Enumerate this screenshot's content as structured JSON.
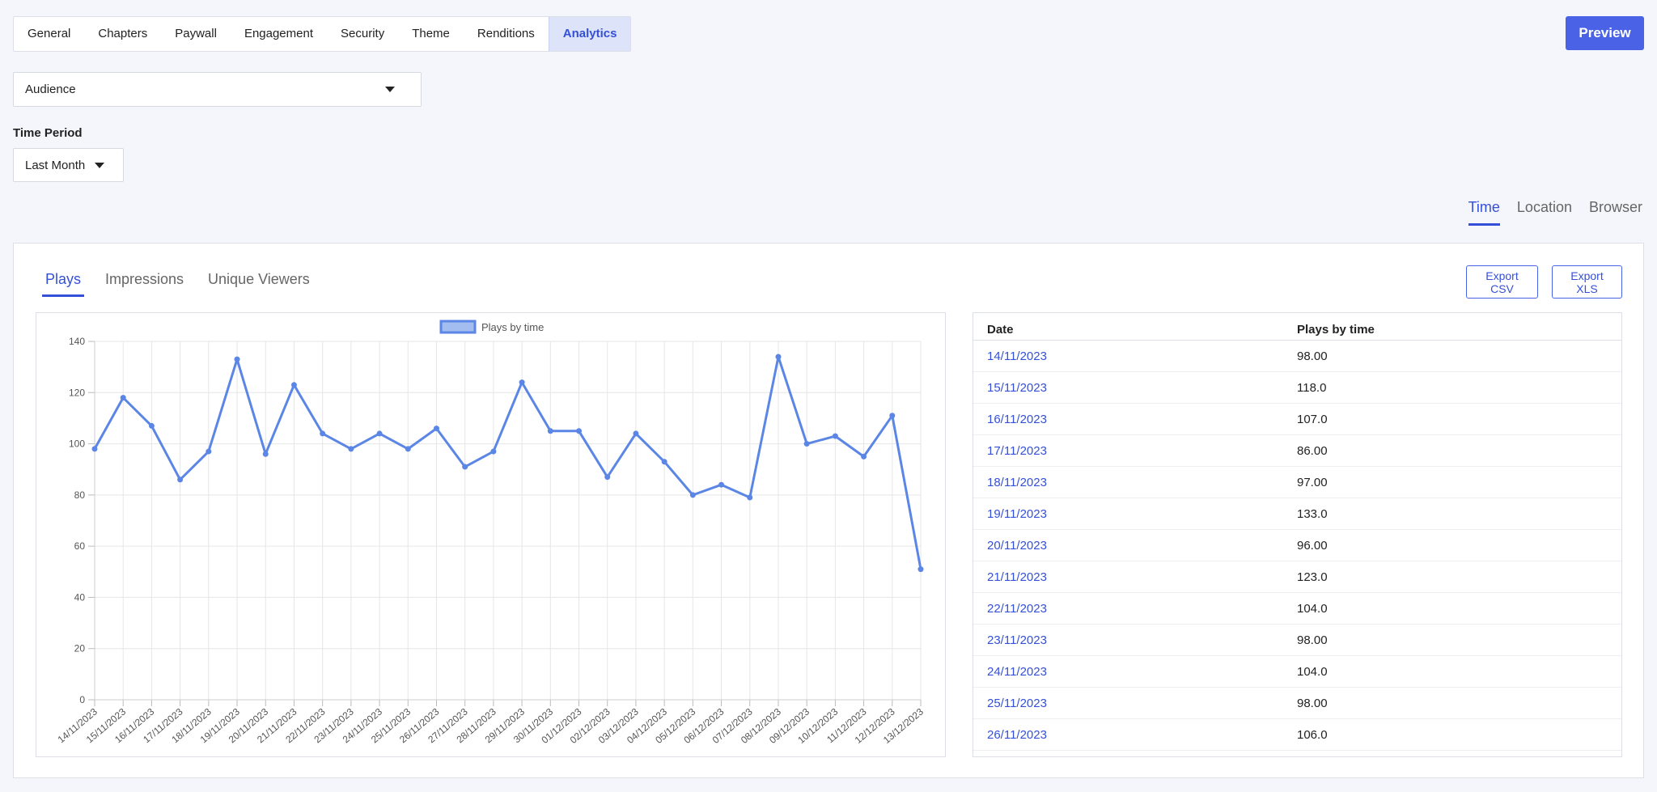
{
  "nav": {
    "tabs": [
      {
        "label": "General"
      },
      {
        "label": "Chapters"
      },
      {
        "label": "Paywall"
      },
      {
        "label": "Engagement"
      },
      {
        "label": "Security"
      },
      {
        "label": "Theme"
      },
      {
        "label": "Renditions"
      },
      {
        "label": "Analytics",
        "active": true
      }
    ],
    "preview_label": "Preview"
  },
  "filters": {
    "audience_value": "Audience",
    "time_period_label": "Time Period",
    "time_period_value": "Last Month"
  },
  "view_tabs": [
    {
      "label": "Time",
      "active": true
    },
    {
      "label": "Location"
    },
    {
      "label": "Browser"
    }
  ],
  "metric_tabs": [
    {
      "label": "Plays",
      "active": true
    },
    {
      "label": "Impressions"
    },
    {
      "label": "Unique Viewers"
    }
  ],
  "export": {
    "csv_label": "Export CSV",
    "xls_label": "Export XLS"
  },
  "colors": {
    "accent": "#3550d8",
    "line": "#5b86e5",
    "legend_fill": "#a4bdf1"
  },
  "chart_data": {
    "type": "line",
    "legend": "Plays by time",
    "legend_position": "top-center",
    "grid": true,
    "ylim": [
      0,
      140
    ],
    "yticks": [
      0,
      20,
      40,
      60,
      80,
      100,
      120,
      140
    ],
    "x": [
      "14/11/2023",
      "15/11/2023",
      "16/11/2023",
      "17/11/2023",
      "18/11/2023",
      "19/11/2023",
      "20/11/2023",
      "21/11/2023",
      "22/11/2023",
      "23/11/2023",
      "24/11/2023",
      "25/11/2023",
      "26/11/2023",
      "27/11/2023",
      "28/11/2023",
      "29/11/2023",
      "30/11/2023",
      "01/12/2023",
      "02/12/2023",
      "03/12/2023",
      "04/12/2023",
      "05/12/2023",
      "06/12/2023",
      "07/12/2023",
      "08/12/2023",
      "09/12/2023",
      "10/12/2023",
      "11/12/2023",
      "12/12/2023",
      "13/12/2023"
    ],
    "series": [
      {
        "name": "Plays by time",
        "values": [
          98,
          118,
          107,
          86,
          97,
          133,
          96,
          123,
          104,
          98,
          104,
          98,
          106,
          91,
          97,
          124,
          105,
          105,
          87,
          104,
          93,
          80,
          84,
          79,
          134,
          100,
          103,
          95,
          111,
          51
        ]
      }
    ]
  },
  "table": {
    "headers": {
      "date": "Date",
      "value": "Plays by time"
    },
    "rows": [
      {
        "date": "14/11/2023",
        "value": "98.00"
      },
      {
        "date": "15/11/2023",
        "value": "118.0"
      },
      {
        "date": "16/11/2023",
        "value": "107.0"
      },
      {
        "date": "17/11/2023",
        "value": "86.00"
      },
      {
        "date": "18/11/2023",
        "value": "97.00"
      },
      {
        "date": "19/11/2023",
        "value": "133.0"
      },
      {
        "date": "20/11/2023",
        "value": "96.00"
      },
      {
        "date": "21/11/2023",
        "value": "123.0"
      },
      {
        "date": "22/11/2023",
        "value": "104.0"
      },
      {
        "date": "23/11/2023",
        "value": "98.00"
      },
      {
        "date": "24/11/2023",
        "value": "104.0"
      },
      {
        "date": "25/11/2023",
        "value": "98.00"
      },
      {
        "date": "26/11/2023",
        "value": "106.0"
      }
    ]
  }
}
